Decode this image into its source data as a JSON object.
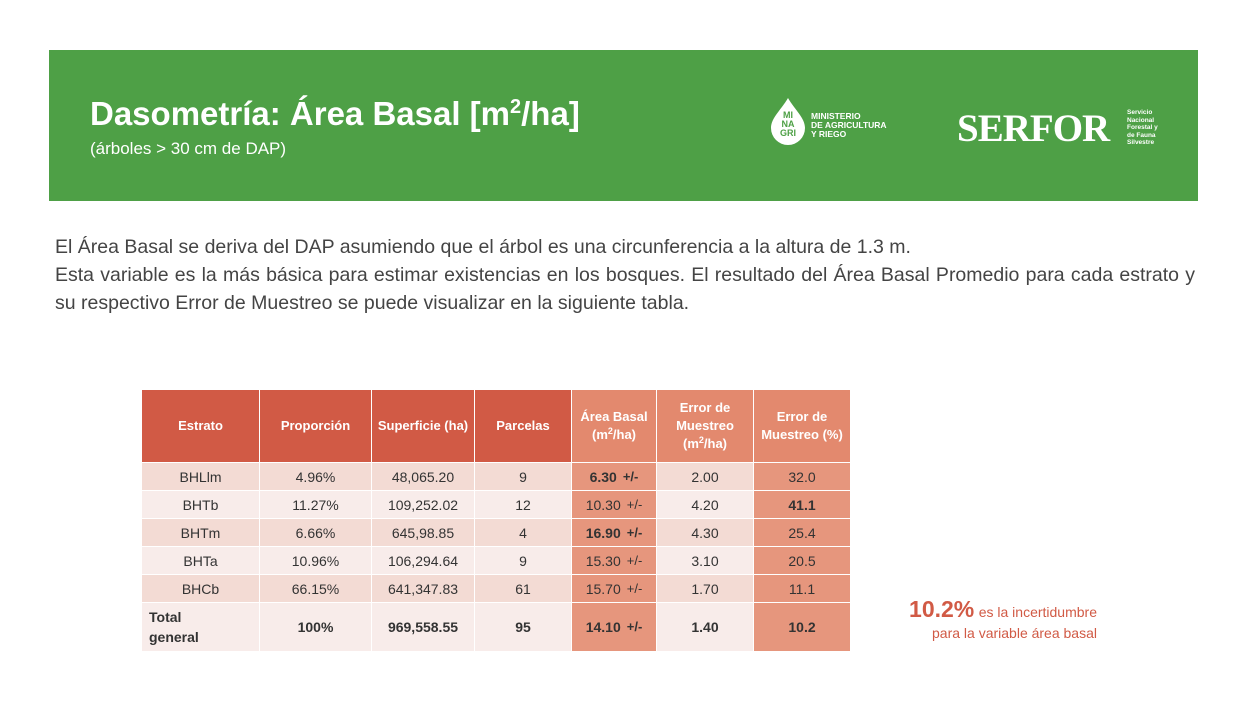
{
  "header": {
    "title_main": "Dasometría: Área Basal [m",
    "title_sup": "2",
    "title_end": "/ha]",
    "subtitle": "(árboles > 30 cm de DAP)",
    "minagri_logo": {
      "mi": "MI",
      "na": "NA",
      "gri": "GRI",
      "line1": "MINISTERIO",
      "line2": "DE AGRICULTURA",
      "line3": "Y RIEGO"
    },
    "serfor_logo": {
      "word": "SERFOR",
      "line1": "Servicio",
      "line2": "Nacional",
      "line3": "Forestal y",
      "line4": "de Fauna",
      "line5": "Silvestre"
    }
  },
  "intro": {
    "p1": "El Área Basal se deriva del DAP asumiendo que el árbol es una circunferencia a la altura de 1.3 m.",
    "p2": "Esta variable es la más básica para estimar existencias en los bosques. El resultado del Área Basal Promedio para cada estrato y su respectivo Error de Muestreo se puede visualizar en la siguiente tabla."
  },
  "table": {
    "headers": {
      "estrato": "Estrato",
      "proporcion": "Proporción",
      "superficie": "Superficie (ha)",
      "parcelas": "Parcelas",
      "area_a": "Área Basal (m",
      "area_b": "/ha)",
      "error_a": "Error de Muestreo (m",
      "error_b": "/ha)",
      "error_pct": "Error de Muestreo (%)",
      "sup2": "2"
    },
    "rows": [
      {
        "estrato": "BHLlm",
        "proporcion": "4.96%",
        "superficie": "48,065.20",
        "parcelas": "9",
        "area": "6.30",
        "pm": "+/-",
        "error": "2.00",
        "error_pct": "32.0"
      },
      {
        "estrato": "BHTb",
        "proporcion": "11.27%",
        "superficie": "109,252.02",
        "parcelas": "12",
        "area": "10.30",
        "pm": "+/-",
        "error": "4.20",
        "error_pct": "41.1"
      },
      {
        "estrato": "BHTm",
        "proporcion": "6.66%",
        "superficie": "645,98.85",
        "parcelas": "4",
        "area": "16.90",
        "pm": "+/-",
        "error": "4.30",
        "error_pct": "25.4"
      },
      {
        "estrato": "BHTa",
        "proporcion": "10.96%",
        "superficie": "106,294.64",
        "parcelas": "9",
        "area": "15.30",
        "pm": "+/-",
        "error": "3.10",
        "error_pct": "20.5"
      },
      {
        "estrato": "BHCb",
        "proporcion": "66.15%",
        "superficie": "641,347.83",
        "parcelas": "61",
        "area": "15.70",
        "pm": "+/-",
        "error": "1.70",
        "error_pct": "11.1"
      }
    ],
    "total": {
      "estrato_l1": "Total",
      "estrato_l2": "general",
      "proporcion": "100%",
      "superficie": "969,558.55",
      "parcelas": "95",
      "area": "14.10",
      "pm": "+/-",
      "error": "1.40",
      "error_pct": "10.2"
    }
  },
  "note": {
    "pct": "10.2%",
    "text1": "es la incertidumbre",
    "text2": "para la variable área basal"
  },
  "colors": {
    "banner": "#4ea046",
    "header_dark": "#d15a45",
    "header_light": "#e3896e",
    "accent": "#d15a45"
  }
}
